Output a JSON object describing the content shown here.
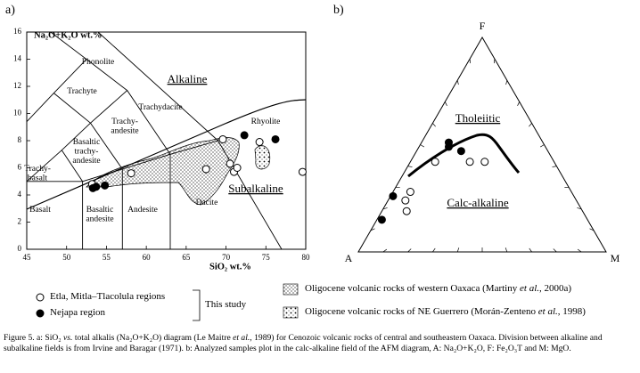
{
  "panel_labels": [
    "a)",
    "b)"
  ],
  "chart_data": [
    {
      "type": "scatter",
      "y_label": "Na₂O+K₂O wt.%",
      "x_label": "SiO₂  wt.%",
      "xlim": [
        45,
        80
      ],
      "ylim": [
        0,
        16
      ],
      "xticks": [
        45,
        50,
        55,
        60,
        65,
        70,
        75,
        80
      ],
      "yticks": [
        0,
        2,
        4,
        6,
        8,
        10,
        12,
        14,
        16
      ],
      "series": [
        {
          "name": "Etla, Mitla–Tlacolula regions",
          "marker": "open",
          "color": "#000000",
          "x": [
            53.2,
            58.1,
            67.5,
            69.6,
            70.5,
            71.0,
            71.4,
            74.2,
            79.6
          ],
          "values": [
            4.8,
            5.6,
            5.9,
            8.1,
            6.3,
            5.7,
            6.0,
            7.9,
            5.7
          ]
        },
        {
          "name": "Nejapa region",
          "marker": "filled",
          "color": "#000000",
          "x": [
            53.3,
            53.7,
            54.8,
            72.3,
            76.2
          ],
          "values": [
            4.5,
            4.6,
            4.7,
            8.4,
            8.1
          ]
        }
      ],
      "field_labels": [
        [
          "Phonolite"
        ],
        [
          "Trachyte"
        ],
        [
          "Trachydacite"
        ],
        [
          "Trachy-",
          "andesite"
        ],
        [
          "Basaltic",
          "trachy-",
          "andesite"
        ],
        [
          "Trachy-",
          "basalt"
        ],
        [
          "Basalt"
        ],
        [
          "Basaltic",
          "andesite"
        ],
        [
          "Andesite"
        ],
        [
          "Dacite"
        ],
        [
          "Rhyolite"
        ]
      ],
      "region_labels": [
        "Alkaline",
        "Subalkaline"
      ]
    },
    {
      "type": "ternary",
      "vertices": [
        "F",
        "A",
        "M"
      ],
      "field_labels": [
        "Tholeiitic",
        "Calc-alkaline"
      ],
      "series": [
        {
          "marker": "open",
          "color": "#000000",
          "A": [
            69,
            65,
            71,
            48,
            34,
            28
          ],
          "F": [
            24,
            28,
            19,
            42,
            42,
            42
          ],
          "M": [
            7,
            7,
            10,
            10,
            24,
            30
          ]
        },
        {
          "marker": "filled",
          "color": "#000000",
          "A": [
            83,
            73,
            38,
            39,
            35
          ],
          "F": [
            15,
            26,
            51,
            49,
            47
          ],
          "M": [
            2,
            1,
            11,
            12,
            18
          ]
        }
      ]
    }
  ],
  "legend": {
    "this_study": "This study",
    "fields": [
      [
        "Oligocene volcanic rocks of western Oaxaca (Martiny ",
        {
          "text": "et al.",
          "italic": true
        },
        ", 2000a)"
      ],
      [
        "Oligocene volcanic rocks of NE Guerrero (Morán-Zenteno ",
        {
          "text": "et al.",
          "italic": true
        },
        ", 1998)"
      ]
    ]
  },
  "caption": [
    "Figure 5. a: SiO₂ ",
    {
      "text": "vs.",
      "italic": true
    },
    " total alkalis (Na₂O+K₂O) diagram (Le Maitre ",
    {
      "text": "et al.",
      "italic": true
    },
    ", 1989) for Cenozoic volcanic rocks of central and southeastern Oaxaca. Division between alkaline and subalkaline fields is from Irvine and Baragar (1971). b: Analyzed samples plot in the calc-alkaline field of the AFM diagram, A: Na₂O+K₂O, F: Fe₂O₃T and M: MgO."
  ]
}
